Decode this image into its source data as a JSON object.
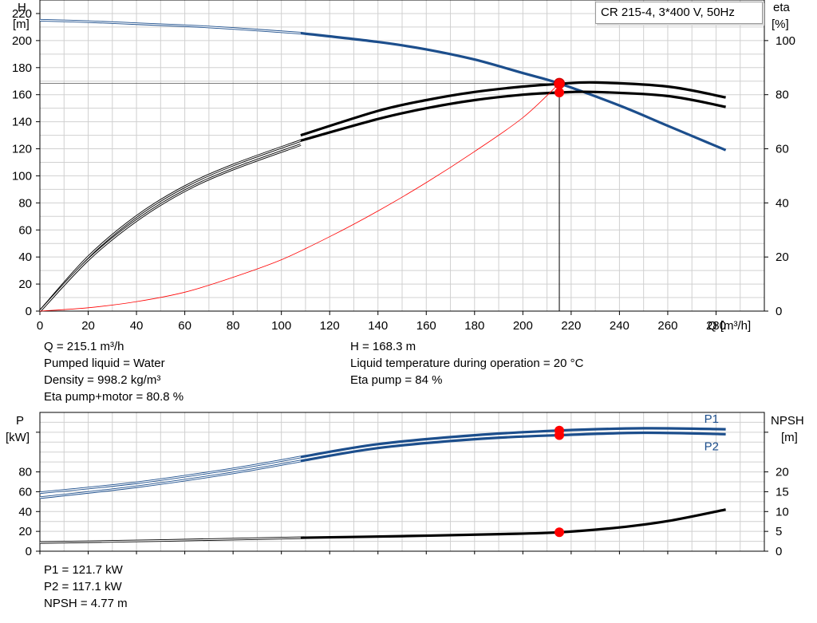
{
  "colors": {
    "head": "#1c4e8c",
    "power": "#1c4e8c",
    "efficiency": "#000000",
    "npsh": "#000000",
    "system": "#ff0000",
    "grid": "#d0d0d0",
    "marker": "#ff0000",
    "duty_marker_fill": "#ffff00"
  },
  "legend": "CR 215-4, 3*400 V, 50Hz",
  "info": {
    "q": "Q = 215.1 m³/h",
    "liquid": "Pumped liquid = Water",
    "density": "Density = 998.2 kg/m³",
    "eta_total": "Eta pump+motor = 80.8 %",
    "h": "H = 168.3 m",
    "temp": "Liquid temperature during operation = 20 °C",
    "eta_pump": "Eta pump = 84 %",
    "p1": "P1 = 121.7 kW",
    "p2": "P2 = 117.1 kW",
    "npsh": "NPSH = 4.77 m"
  },
  "chart_data": [
    {
      "type": "line",
      "title": "",
      "xlabel": "Q [m³/h]",
      "ylabel": "H\n[m]",
      "y2label": "eta\n[%]",
      "xlim": [
        0,
        300
      ],
      "ylim": [
        0,
        230
      ],
      "y2lim": [
        0,
        115
      ],
      "x_ticks": [
        0,
        20,
        40,
        60,
        80,
        100,
        120,
        140,
        160,
        180,
        200,
        220,
        240,
        260,
        280
      ],
      "y_ticks": [
        0,
        20,
        40,
        60,
        80,
        100,
        120,
        140,
        160,
        180,
        200,
        220
      ],
      "y2_ticks": [
        0,
        20,
        40,
        60,
        80,
        100
      ],
      "grid": true,
      "duty_point": {
        "q": 215.1,
        "h": 168.3,
        "eta_pump": 84,
        "eta_total": 80.8
      },
      "series": [
        {
          "role": "head",
          "axis": "left",
          "x": [
            0,
            20,
            40,
            60,
            80,
            108
          ],
          "y": [
            215,
            214,
            212.5,
            211,
            209,
            205.5
          ],
          "thin": true
        },
        {
          "role": "head",
          "axis": "left",
          "x": [
            108,
            140,
            160,
            180,
            200,
            215.1,
            240,
            260,
            284
          ],
          "y": [
            205.5,
            199,
            193.5,
            186,
            176,
            168.3,
            152,
            137,
            119
          ]
        },
        {
          "role": "eta_pump",
          "axis": "right",
          "x": [
            0,
            20,
            40,
            60,
            80,
            108
          ],
          "y": [
            0,
            20,
            35,
            46,
            54,
            63
          ],
          "thin": true
        },
        {
          "role": "eta_pump",
          "axis": "right",
          "x": [
            108,
            140,
            160,
            180,
            200,
            215.1,
            230,
            260,
            284
          ],
          "y": [
            65,
            74,
            78,
            81,
            83,
            84,
            84.5,
            83,
            79
          ]
        },
        {
          "role": "eta_total",
          "axis": "right",
          "x": [
            0,
            20,
            40,
            60,
            80,
            108
          ],
          "y": [
            0,
            19,
            33.5,
            44.5,
            52.5,
            61.5
          ],
          "thin": true
        },
        {
          "role": "eta_total",
          "axis": "right",
          "x": [
            108,
            140,
            160,
            180,
            200,
            215.1,
            230,
            260,
            284
          ],
          "y": [
            63,
            71,
            75,
            78,
            80,
            80.8,
            81,
            79.5,
            75.5
          ]
        },
        {
          "role": "system",
          "axis": "left",
          "x": [
            0,
            20,
            40,
            60,
            80,
            100,
            120,
            140,
            160,
            180,
            200,
            215.1
          ],
          "y": [
            0,
            2.5,
            7,
            14,
            25,
            38,
            55,
            74,
            95,
            118,
            143,
            168.3
          ]
        }
      ]
    },
    {
      "type": "line",
      "title": "",
      "xlabel": "",
      "ylabel": "P\n[kW]",
      "y2label": "NPSH\n[m]",
      "xlim": [
        0,
        300
      ],
      "ylim": [
        0,
        140
      ],
      "y2lim": [
        0,
        35
      ],
      "y_ticks": [
        0,
        20,
        40,
        60,
        80
      ],
      "y2_ticks": [
        0,
        5,
        10,
        15,
        20
      ],
      "grid": true,
      "duty_point": {
        "q": 215.1,
        "p1": 121.7,
        "p2": 117.1,
        "npsh": 4.77
      },
      "series": [
        {
          "name": "P1",
          "role": "p1",
          "axis": "left",
          "x": [
            0,
            40,
            80,
            108
          ],
          "y": [
            59,
            69,
            83,
            95
          ],
          "thin": true
        },
        {
          "name": "P1",
          "role": "p1",
          "axis": "left",
          "x": [
            108,
            140,
            180,
            215.1,
            250,
            284
          ],
          "y": [
            95,
            108,
            117,
            121.7,
            124,
            123
          ]
        },
        {
          "name": "P2",
          "role": "p2",
          "axis": "left",
          "x": [
            0,
            40,
            80,
            108
          ],
          "y": [
            54,
            65,
            79,
            91
          ],
          "thin": true
        },
        {
          "name": "P2",
          "role": "p2",
          "axis": "left",
          "x": [
            108,
            140,
            180,
            215.1,
            250,
            284
          ],
          "y": [
            91,
            104,
            113,
            117.1,
            119.5,
            118
          ]
        },
        {
          "role": "npsh",
          "axis": "right",
          "x": [
            0,
            50,
            108
          ],
          "y": [
            2.2,
            2.7,
            3.4
          ],
          "thin": true
        },
        {
          "role": "npsh",
          "axis": "right",
          "x": [
            108,
            150,
            190,
            215.1,
            240,
            260,
            284
          ],
          "y": [
            3.4,
            3.8,
            4.3,
            4.77,
            6,
            7.6,
            10.5
          ]
        }
      ]
    }
  ]
}
